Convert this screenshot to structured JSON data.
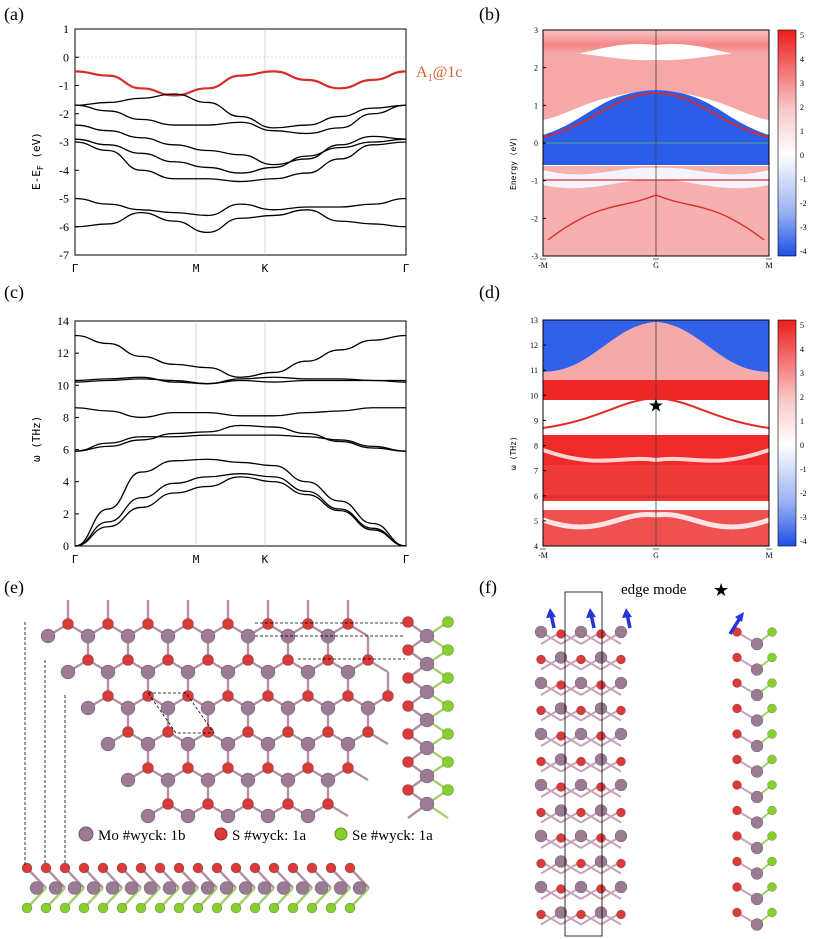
{
  "panels": {
    "a": {
      "label": "(a)",
      "ylabel": "E-E",
      "ylabel_sub": "F",
      "ylabel_unit": " (eV)",
      "annotation": "A",
      "annotation_sub": "1",
      "annotation_rest": "@1c"
    },
    "b": {
      "label": "(b)",
      "ylabel": "Energy (eV)"
    },
    "c": {
      "label": "(c)",
      "ylabel": "ω (THz)"
    },
    "d": {
      "label": "(d)",
      "ylabel": "ω (THz)"
    },
    "e": {
      "label": "(e)"
    },
    "f": {
      "label": "(f)",
      "edge_label": "edge mode",
      "star": "★"
    }
  },
  "legend": [
    {
      "name": "Mo",
      "text": "Mo #wyck: 1b",
      "color": "#9b7b93"
    },
    {
      "name": "S",
      "text": "S #wyck: 1a",
      "color": "#d93a3a"
    },
    {
      "name": "Se",
      "text": "Se #wyck: 1a",
      "color": "#86cf2e"
    }
  ],
  "colors": {
    "band": "#000000",
    "highlight": "#d62c2c",
    "cmap_low": "#1e4fe6",
    "cmap_mid": "#ffffff",
    "cmap_high": "#ee1c1c",
    "mo": "#9b7b93",
    "s": "#d93a3a",
    "se": "#86cf2e"
  },
  "chart_data": [
    {
      "type": "line",
      "panel": "a",
      "kpath_labels": [
        "Γ",
        "M",
        "K",
        "Γ"
      ],
      "ylabel": "E-E_F (eV)",
      "ylim": [
        -7,
        1
      ],
      "yticks": [
        "1",
        "0",
        "-1",
        "-2",
        "-3",
        "-4",
        "-5",
        "-6",
        "-7"
      ],
      "x": [
        0,
        0.1,
        0.2,
        0.3,
        0.4,
        0.5,
        0.6,
        0.7,
        0.8,
        0.9,
        1.0
      ],
      "series": [
        {
          "values": [
            -0.5,
            -0.65,
            -1.1,
            -1.35,
            -1.1,
            -0.65,
            -0.5,
            -0.8,
            -1.1,
            -0.8,
            -0.5
          ],
          "highlight": true
        },
        {
          "values": [
            -1.7,
            -1.6,
            -1.45,
            -1.3,
            -1.6,
            -2.1,
            -2.5,
            -2.4,
            -2.1,
            -1.8,
            -1.7
          ]
        },
        {
          "values": [
            -1.7,
            -1.9,
            -2.2,
            -2.4,
            -2.4,
            -2.3,
            -2.6,
            -2.7,
            -2.5,
            -2.0,
            -1.7
          ]
        },
        {
          "values": [
            -2.4,
            -2.6,
            -2.85,
            -3.1,
            -3.3,
            -3.45,
            -3.8,
            -3.6,
            -3.1,
            -2.8,
            -2.9
          ]
        },
        {
          "values": [
            -2.9,
            -3.1,
            -3.4,
            -3.7,
            -3.9,
            -4.1,
            -3.9,
            -3.5,
            -3.2,
            -3.0,
            -2.9
          ]
        },
        {
          "values": [
            -3.0,
            -3.3,
            -4.0,
            -4.3,
            -4.3,
            -4.4,
            -4.3,
            -4.1,
            -3.6,
            -3.1,
            -3.0
          ]
        },
        {
          "values": [
            -5.0,
            -5.2,
            -5.4,
            -5.5,
            -5.6,
            -5.2,
            -5.4,
            -5.3,
            -5.3,
            -5.2,
            -5.0
          ]
        },
        {
          "values": [
            -6.0,
            -5.9,
            -5.5,
            -5.8,
            -6.2,
            -5.7,
            -5.6,
            -5.4,
            -5.8,
            -5.9,
            -6.0
          ]
        }
      ]
    },
    {
      "type": "heatmap",
      "panel": "b",
      "ylabel": "Energy (eV)",
      "ylim": [
        -3,
        3
      ],
      "yticks": [
        "3",
        "2",
        "1",
        "0",
        "-1",
        "-2",
        "-3"
      ],
      "xticks": [
        "-M",
        "G",
        "M"
      ],
      "colorbar_ticks": [
        "5",
        "4",
        "3",
        "2",
        "1",
        "0",
        "-1",
        "-2",
        "-3",
        "-4"
      ]
    },
    {
      "type": "line",
      "panel": "c",
      "kpath_labels": [
        "Γ",
        "M",
        "K",
        "Γ"
      ],
      "ylabel": "ω (THz)",
      "ylim": [
        0,
        14
      ],
      "yticks": [
        "14",
        "12",
        "10",
        "8",
        "6",
        "4",
        "2",
        "0"
      ],
      "x": [
        0,
        0.1,
        0.2,
        0.3,
        0.4,
        0.5,
        0.6,
        0.7,
        0.8,
        0.9,
        1.0
      ],
      "series": [
        {
          "values": [
            0,
            1.2,
            2.4,
            3.3,
            3.7,
            4.3,
            4.0,
            3.2,
            2.2,
            1.0,
            0
          ]
        },
        {
          "values": [
            0,
            1.5,
            3.0,
            3.9,
            4.3,
            4.5,
            4.3,
            3.4,
            2.3,
            1.1,
            0
          ]
        },
        {
          "values": [
            0,
            2.3,
            4.6,
            5.3,
            5.4,
            5.2,
            5.0,
            4.0,
            2.8,
            1.4,
            0
          ]
        },
        {
          "values": [
            5.9,
            6.4,
            6.8,
            6.8,
            6.9,
            6.9,
            6.9,
            6.8,
            6.6,
            6.2,
            5.9
          ]
        },
        {
          "values": [
            5.9,
            6.2,
            6.6,
            7.0,
            7.1,
            7.5,
            7.4,
            7.0,
            6.5,
            6.1,
            5.9
          ]
        },
        {
          "values": [
            8.6,
            8.4,
            8.0,
            8.3,
            8.3,
            8.1,
            8.1,
            8.3,
            8.4,
            8.6,
            8.6
          ]
        },
        {
          "values": [
            10.2,
            10.3,
            10.4,
            10.3,
            10.1,
            10.3,
            10.2,
            10.3,
            10.3,
            10.3,
            10.2
          ]
        },
        {
          "values": [
            10.3,
            10.4,
            10.5,
            10.2,
            10.1,
            10.4,
            10.5,
            10.4,
            10.4,
            10.3,
            10.3
          ]
        },
        {
          "values": [
            13.1,
            12.6,
            11.8,
            11.3,
            11.1,
            10.5,
            10.8,
            11.5,
            12.2,
            12.8,
            13.1
          ]
        }
      ]
    },
    {
      "type": "heatmap",
      "panel": "d",
      "ylabel": "ω (THz)",
      "ylim": [
        4,
        13
      ],
      "yticks": [
        "13",
        "12",
        "11",
        "10",
        "9",
        "8",
        "7",
        "6",
        "5",
        "4"
      ],
      "xticks": [
        "-M",
        "G",
        "M"
      ],
      "colorbar_ticks": [
        "5",
        "4",
        "3",
        "2",
        "1",
        "0",
        "-1",
        "-2",
        "-3",
        "-4"
      ],
      "star": {
        "x": 0,
        "y": 9.6
      }
    }
  ]
}
